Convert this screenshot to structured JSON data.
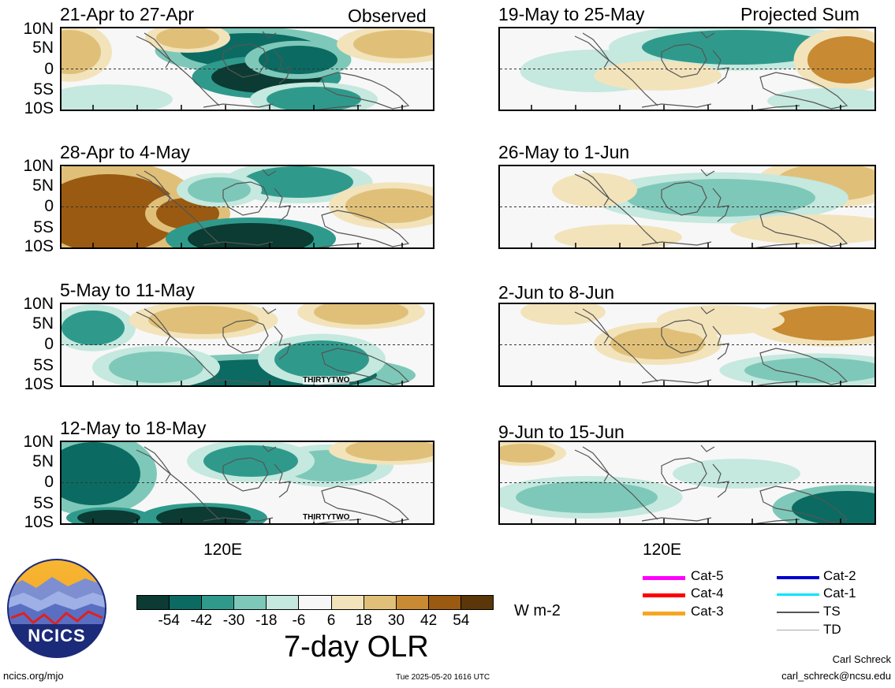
{
  "panels": [
    {
      "title": "21-Apr to 27-Apr",
      "right_title": "Observed",
      "side": "left",
      "row": 0
    },
    {
      "title": "19-May to 25-May",
      "right_title": "Projected Sum",
      "side": "right",
      "row": 0
    },
    {
      "title": "28-Apr to 4-May",
      "right_title": "",
      "side": "left",
      "row": 1
    },
    {
      "title": "26-May to 1-Jun",
      "right_title": "",
      "side": "right",
      "row": 1
    },
    {
      "title": "5-May to 11-May",
      "right_title": "",
      "side": "left",
      "row": 2
    },
    {
      "title": "2-Jun to 8-Jun",
      "right_title": "",
      "side": "right",
      "row": 2
    },
    {
      "title": "12-May to 18-May",
      "right_title": "",
      "side": "left",
      "row": 3
    },
    {
      "title": "9-Jun to 15-Jun",
      "right_title": "",
      "side": "right",
      "row": 3
    }
  ],
  "lat_labels": [
    "10N",
    "5N",
    "0",
    "5S",
    "10S"
  ],
  "lon_label": "120E",
  "storm_labels": [
    "THIRTYTWO",
    "THIRTYTWO"
  ],
  "colorbar": {
    "tick_labels": [
      "-54",
      "-42",
      "-30",
      "-18",
      "-6",
      "6",
      "18",
      "30",
      "42",
      "54"
    ],
    "colors": [
      "#0b3b33",
      "#0b6b62",
      "#2f9a8c",
      "#7ec8b9",
      "#c5e8df",
      "#f7f7f7",
      "#f2e3bb",
      "#e0c079",
      "#c88a32",
      "#9a5a12",
      "#5a3608"
    ],
    "units": "W m-2",
    "title": "7-day OLR"
  },
  "legend": [
    {
      "label": "Cat-5",
      "color": "#ff00ff"
    },
    {
      "label": "Cat-4",
      "color": "#ff0000"
    },
    {
      "label": "Cat-3",
      "color": "#f5a623"
    },
    {
      "label": "Cat-2",
      "color": "#0000cc"
    },
    {
      "label": "Cat-1",
      "color": "#00e5ff"
    },
    {
      "label": "TS",
      "color": "#555555"
    },
    {
      "label": "TD",
      "color": "#aaaaaa"
    }
  ],
  "logo_text": "NCICS",
  "footer": {
    "left": "ncics.org/mjo",
    "center": "Tue 2025-05-20 1616 UTC",
    "author": "Carl Schreck",
    "email": "carl_schreck@ncsu.edu"
  }
}
